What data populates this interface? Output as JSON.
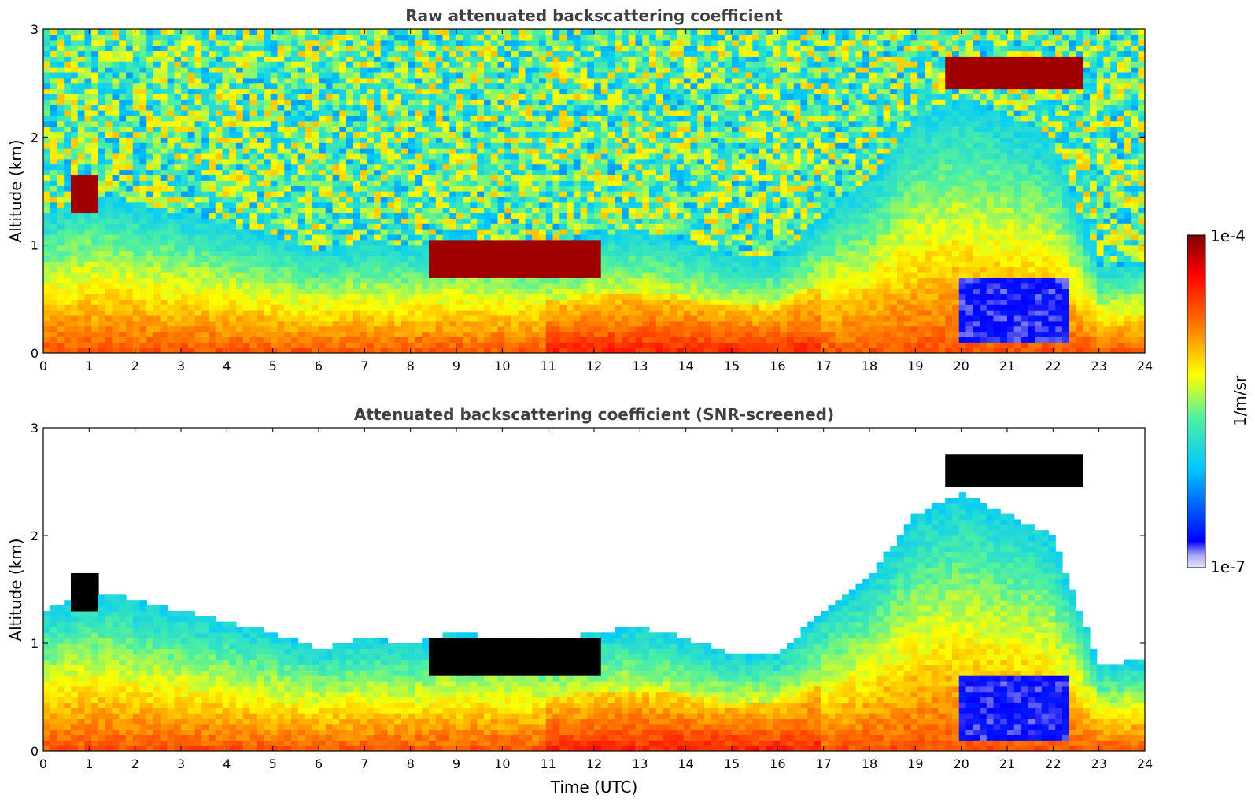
{
  "colors": {
    "background": "#ffffff",
    "axis": "#000000",
    "title": "#404040",
    "colormap": [
      "#e8e8f8",
      "#0000ff",
      "#00c8ff",
      "#50f0a0",
      "#ffff00",
      "#ff8000",
      "#ff0000",
      "#800000"
    ]
  },
  "chart_data": [
    {
      "type": "heatmap",
      "title": "Raw attenuated backscattering coefficient",
      "xlabel": "",
      "ylabel": "Altitude (km)",
      "xlim": [
        0,
        24
      ],
      "ylim": [
        0,
        3
      ],
      "x_ticks": [
        "0",
        "1",
        "2",
        "3",
        "4",
        "5",
        "6",
        "7",
        "8",
        "9",
        "10",
        "11",
        "12",
        "13",
        "14",
        "15",
        "16",
        "17",
        "18",
        "19",
        "20",
        "21",
        "22",
        "23",
        "24"
      ],
      "y_ticks": [
        "0",
        "1",
        "2",
        "3"
      ],
      "x_tick_values": [
        0,
        1,
        2,
        3,
        4,
        5,
        6,
        7,
        8,
        9,
        10,
        11,
        12,
        13,
        14,
        15,
        16,
        17,
        18,
        19,
        20,
        21,
        22,
        23,
        24
      ],
      "y_tick_values": [
        0,
        1,
        2,
        3
      ],
      "mixed_layer_top_km": [
        [
          0,
          1.3
        ],
        [
          1,
          1.5
        ],
        [
          2,
          1.4
        ],
        [
          3,
          1.3
        ],
        [
          4,
          1.2
        ],
        [
          5,
          1.1
        ],
        [
          6,
          0.95
        ],
        [
          7,
          1.05
        ],
        [
          8,
          1.0
        ],
        [
          9,
          1.1
        ],
        [
          10,
          1.05
        ],
        [
          11,
          1.0
        ],
        [
          12,
          1.1
        ],
        [
          13,
          1.15
        ],
        [
          14,
          1.05
        ],
        [
          15,
          0.9
        ],
        [
          16,
          0.9
        ],
        [
          17,
          1.3
        ],
        [
          18,
          1.6
        ],
        [
          19,
          2.2
        ],
        [
          20,
          2.4
        ],
        [
          21,
          2.2
        ],
        [
          22,
          2.0
        ],
        [
          23,
          0.8
        ],
        [
          24,
          0.85
        ]
      ],
      "cloud_layers": [
        {
          "x": [
            0.6,
            1.2
          ],
          "alt_km": [
            1.3,
            1.65
          ]
        },
        {
          "x": [
            8.4,
            12.2
          ],
          "alt_km": [
            0.7,
            1.05
          ]
        },
        {
          "x": [
            19.7,
            22.6
          ],
          "alt_km": [
            2.45,
            2.75
          ]
        }
      ],
      "clear_air_region": {
        "x": [
          19.9,
          22.4
        ],
        "alt_km": [
          0.1,
          0.7
        ]
      },
      "noise_screened": false
    },
    {
      "type": "heatmap",
      "title": "Attenuated backscattering coefficient (SNR-screened)",
      "xlabel": "Time (UTC)",
      "ylabel": "Altitude (km)",
      "xlim": [
        0,
        24
      ],
      "ylim": [
        0,
        3
      ],
      "x_ticks": [
        "0",
        "1",
        "2",
        "3",
        "4",
        "5",
        "6",
        "7",
        "8",
        "9",
        "10",
        "11",
        "12",
        "13",
        "14",
        "15",
        "16",
        "17",
        "18",
        "19",
        "20",
        "21",
        "22",
        "23",
        "24"
      ],
      "y_ticks": [
        "0",
        "1",
        "2",
        "3"
      ],
      "x_tick_values": [
        0,
        1,
        2,
        3,
        4,
        5,
        6,
        7,
        8,
        9,
        10,
        11,
        12,
        13,
        14,
        15,
        16,
        17,
        18,
        19,
        20,
        21,
        22,
        23,
        24
      ],
      "y_tick_values": [
        0,
        1,
        2,
        3
      ],
      "mixed_layer_top_km": [
        [
          0,
          1.3
        ],
        [
          1,
          1.5
        ],
        [
          2,
          1.4
        ],
        [
          3,
          1.3
        ],
        [
          4,
          1.2
        ],
        [
          5,
          1.1
        ],
        [
          6,
          0.95
        ],
        [
          7,
          1.05
        ],
        [
          8,
          1.0
        ],
        [
          9,
          1.1
        ],
        [
          10,
          1.05
        ],
        [
          11,
          1.0
        ],
        [
          12,
          1.1
        ],
        [
          13,
          1.15
        ],
        [
          14,
          1.05
        ],
        [
          15,
          0.9
        ],
        [
          16,
          0.9
        ],
        [
          17,
          1.3
        ],
        [
          18,
          1.6
        ],
        [
          19,
          2.2
        ],
        [
          20,
          2.4
        ],
        [
          21,
          2.2
        ],
        [
          22,
          2.0
        ],
        [
          23,
          0.8
        ],
        [
          24,
          0.85
        ]
      ],
      "cloud_layers": [
        {
          "x": [
            0.6,
            1.2
          ],
          "alt_km": [
            1.3,
            1.65
          ]
        },
        {
          "x": [
            8.4,
            12.2
          ],
          "alt_km": [
            0.7,
            1.05
          ]
        },
        {
          "x": [
            19.7,
            22.6
          ],
          "alt_km": [
            2.45,
            2.75
          ]
        }
      ],
      "clear_air_region": {
        "x": [
          19.9,
          22.4
        ],
        "alt_km": [
          0.1,
          0.7
        ]
      },
      "noise_screened": true
    }
  ],
  "colorbar": {
    "label": "1/m/sr",
    "max_label": "1e-4",
    "min_label": "1e-7",
    "scale": "log",
    "range": [
      1e-07,
      0.0001
    ]
  }
}
